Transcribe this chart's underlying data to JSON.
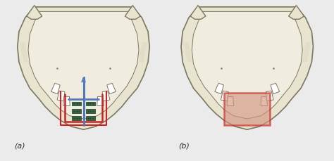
{
  "background_color": "#ebebeb",
  "bone_color": "#e8e4d0",
  "bone_color2": "#d8d4bc",
  "bone_edge_color": "#7a7860",
  "bone_inner_color": "#f0ede0",
  "red_outline": "#cc2222",
  "blue_device": "#5577bb",
  "blue_device2": "#6688cc",
  "green_screws": "#3a6644",
  "pink_fill": "#d49480",
  "label_a": "(a)",
  "label_b": "(b)",
  "fig_width": 4.74,
  "fig_height": 2.29,
  "dpi": 100
}
